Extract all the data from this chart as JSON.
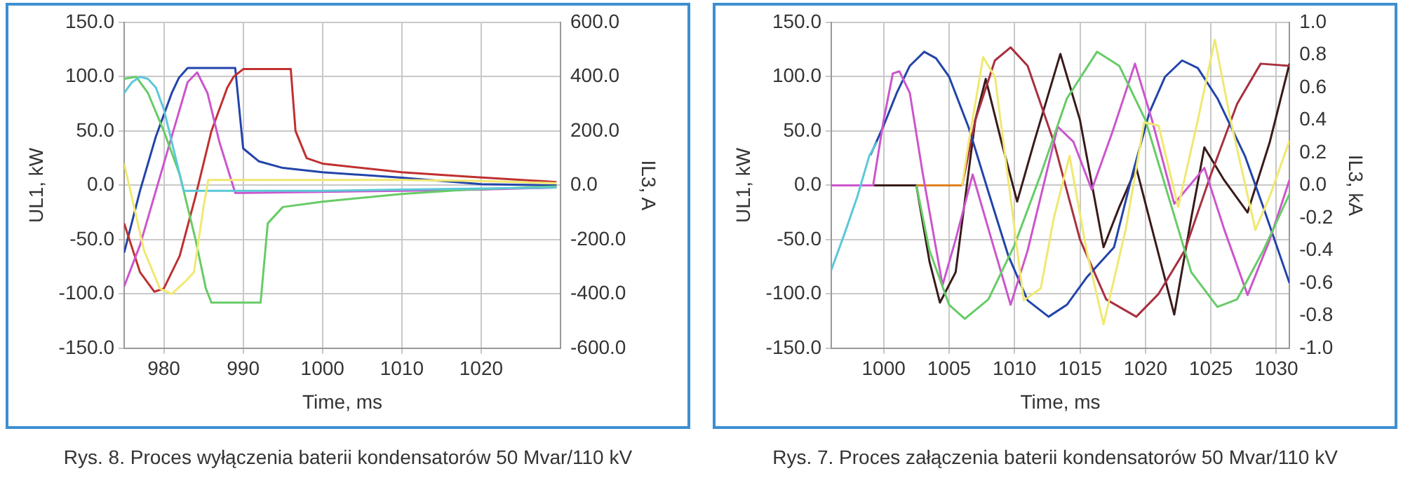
{
  "chart_data": [
    {
      "type": "line",
      "xlabel": "Time, ms",
      "ylabel": "UL1, kW",
      "y2label": "IL3, A",
      "annotations": [
        "Rys. 8. Proces wyłączenia baterii kondensatorów 50 Mvar/110 kV"
      ],
      "grid": true,
      "legend": false,
      "marker": "none",
      "xlim": [
        975,
        1030
      ],
      "xticks": [
        980,
        990,
        1000,
        1010,
        1020
      ],
      "ylim": [
        -150,
        150
      ],
      "yticks": [
        {
          "value": -150,
          "label": "-150.0"
        },
        {
          "value": -100,
          "label": "-100.0"
        },
        {
          "value": -50,
          "label": "-50.0"
        },
        {
          "value": 0,
          "label": "0.0"
        },
        {
          "value": 50,
          "label": "50.0"
        },
        {
          "value": 100,
          "label": "100.0"
        },
        {
          "value": 150,
          "label": "150.0"
        }
      ],
      "y2lim": [
        -600,
        600
      ],
      "y2ticks": [
        {
          "value": -600,
          "label": "-600.0"
        },
        {
          "value": -400,
          "label": "-400.0"
        },
        {
          "value": -200,
          "label": "-200.0"
        },
        {
          "value": 0,
          "label": "0.0"
        },
        {
          "value": 200,
          "label": "200.0"
        },
        {
          "value": 400,
          "label": "400.0"
        },
        {
          "value": 600,
          "label": "600.0"
        }
      ],
      "series": [
        {
          "color": "#f0e870",
          "x": [
            975,
            977.5,
            979.5,
            981,
            982.8,
            983.8,
            985,
            985.6,
            990,
            1000,
            1010,
            1020,
            1029.5
          ],
          "values": [
            20,
            -60,
            -95,
            -100,
            -88,
            -80,
            -20,
            5,
            5,
            5,
            5,
            4,
            2
          ]
        },
        {
          "color": "#5cc8d8",
          "x": [
            975,
            976,
            977,
            978,
            979,
            980,
            981,
            982,
            982.5,
            990,
            1000,
            1010,
            1020,
            1029.5
          ],
          "values": [
            85,
            95,
            100,
            98,
            90,
            70,
            40,
            10,
            -5,
            -5,
            -5,
            -4,
            -3,
            -2
          ]
        },
        {
          "color": "#66cc66",
          "x": [
            975,
            976.5,
            978,
            980,
            982,
            984,
            985.3,
            986,
            992.2,
            993.1,
            995,
            1000,
            1010,
            1018.3,
            1029.5
          ],
          "values": [
            98,
            100,
            85,
            50,
            10,
            -50,
            -95,
            -108,
            -108,
            -35,
            -20,
            -15,
            -8,
            -4,
            -1
          ]
        },
        {
          "color": "#cc55cc",
          "x": [
            975,
            977,
            979,
            981,
            983,
            984.2,
            985.5,
            987,
            989,
            990,
            1000,
            1010,
            1020,
            1029.5
          ],
          "values": [
            -93,
            -55,
            -5,
            45,
            95,
            104,
            85,
            40,
            -7,
            -7,
            -6,
            -5,
            -4,
            -2
          ]
        },
        {
          "color": "#c03030",
          "x": [
            975,
            977,
            978.8,
            980,
            982,
            984,
            986,
            988,
            988.8,
            990,
            996,
            996.6,
            998,
            1000,
            1010,
            1018.3,
            1029.5
          ],
          "values": [
            -35,
            -80,
            -98,
            -95,
            -65,
            -10,
            50,
            90,
            100,
            107,
            107,
            50,
            25,
            20,
            12,
            8,
            3
          ]
        },
        {
          "color": "#2244aa",
          "x": [
            975,
            977,
            979,
            981,
            981.9,
            983,
            989,
            990,
            992,
            995,
            1000,
            1010,
            1020,
            1029.5
          ],
          "values": [
            -62,
            -5,
            45,
            85,
            99,
            108,
            108,
            34,
            22,
            16,
            12,
            7,
            1,
            0
          ]
        }
      ]
    },
    {
      "type": "line",
      "xlabel": "Time, ms",
      "ylabel": "UL1, kW",
      "y2label": "IL3, kA",
      "annotations": [
        "Rys. 7. Proces załączenia baterii kondensatorów 50 Mvar/110 kV"
      ],
      "grid": true,
      "legend": false,
      "marker": "none",
      "xlim": [
        996,
        1031
      ],
      "xticks": [
        1000,
        1005,
        1010,
        1015,
        1020,
        1025,
        1030
      ],
      "ylim": [
        -150,
        150
      ],
      "yticks": [
        {
          "value": -150,
          "label": "-150.0"
        },
        {
          "value": -100,
          "label": "-100.0"
        },
        {
          "value": -50,
          "label": "-50.0"
        },
        {
          "value": 0,
          "label": "0.0"
        },
        {
          "value": 50,
          "label": "50.0"
        },
        {
          "value": 100,
          "label": "100.0"
        },
        {
          "value": 150,
          "label": "150.0"
        }
      ],
      "y2lim": [
        -1,
        1
      ],
      "y2ticks": [
        {
          "value": -1,
          "label": "-1.0"
        },
        {
          "value": -0.8,
          "label": "-0.8"
        },
        {
          "value": -0.6,
          "label": "-0.6"
        },
        {
          "value": -0.4,
          "label": "-0.4"
        },
        {
          "value": -0.2,
          "label": "-0.2"
        },
        {
          "value": 0,
          "label": "0.0"
        },
        {
          "value": 0.2,
          "label": "0.2"
        },
        {
          "value": 0.4,
          "label": "0.4"
        },
        {
          "value": 0.6,
          "label": "0.6"
        },
        {
          "value": 0.8,
          "label": "0.8"
        },
        {
          "value": 1,
          "label": "1.0"
        }
      ],
      "series": [
        {
          "color": "#5cc8d8",
          "x": [
            996,
            997,
            998,
            998.9,
            999.5
          ],
          "values": [
            -78,
            -45,
            -10,
            27,
            40
          ]
        },
        {
          "color": "#f0e870",
          "x": [
            1006,
            1006.5,
            1007.6,
            1008.5,
            1010,
            1010.7,
            1012,
            1013,
            1014.2,
            1015.5,
            1016.8,
            1018.5,
            1019.9,
            1021,
            1022.5,
            1024,
            1025.3,
            1026.5,
            1028.4,
            1029.5,
            1031
          ],
          "values": [
            0,
            40,
            118,
            100,
            -40,
            -106,
            -95,
            -30,
            27,
            -60,
            -128,
            -40,
            58,
            55,
            -20,
            60,
            134,
            60,
            -41,
            -10,
            41
          ]
        },
        {
          "color": "#66cc66",
          "x": [
            1002.5,
            1003.5,
            1005,
            1006.2,
            1008,
            1010,
            1012,
            1014,
            1016.3,
            1018,
            1020,
            1022,
            1023.5,
            1025.5,
            1027,
            1029,
            1031
          ],
          "values": [
            0,
            -60,
            -110,
            -123,
            -105,
            -55,
            10,
            80,
            123,
            110,
            60,
            -20,
            -80,
            -112,
            -105,
            -60,
            -8
          ]
        },
        {
          "color": "#cc55cc",
          "x": [
            996,
            999.2,
            1000,
            1000.7,
            1001.2,
            1002,
            1003,
            1004.5,
            1005.5,
            1006.8,
            1008,
            1009.7,
            1011,
            1013.3,
            1014.5,
            1015.9,
            1017.5,
            1019.2,
            1020.5,
            1022.2,
            1024.5,
            1026,
            1027.8,
            1029.5,
            1031
          ],
          "values": [
            0,
            0,
            60,
            103,
            105,
            85,
            10,
            -92,
            -50,
            10,
            -40,
            -110,
            -60,
            54,
            40,
            -4,
            50,
            112,
            60,
            -17,
            16,
            -40,
            -101,
            -50,
            5
          ]
        },
        {
          "color": "#2244aa",
          "x": [
            999,
            1000,
            1001,
            1002,
            1003.1,
            1004,
            1005,
            1006.5,
            1008,
            1009.5,
            1011,
            1012.6,
            1014,
            1015.5,
            1017.6,
            1019,
            1020.3,
            1021.5,
            1022.8,
            1024,
            1025.5,
            1027.6,
            1029,
            1031
          ],
          "values": [
            28,
            55,
            85,
            110,
            123,
            117,
            100,
            53,
            -6,
            -64,
            -106,
            -121,
            -110,
            -85,
            -57,
            10,
            67,
            100,
            115,
            108,
            80,
            27,
            -20,
            -90
          ]
        },
        {
          "color": "#a83040",
          "x": [
            1006,
            1007,
            1008.5,
            1009.7,
            1011,
            1013,
            1015,
            1017,
            1019.3,
            1021,
            1023,
            1025,
            1027,
            1028.8,
            1031
          ],
          "values": [
            0,
            60,
            115,
            127,
            110,
            40,
            -50,
            -105,
            -121,
            -100,
            -60,
            10,
            75,
            112,
            110
          ]
        },
        {
          "color": "#e08020",
          "x": [
            1002.5,
            1006
          ],
          "values": [
            0,
            0
          ]
        },
        {
          "color": "#3a1a1a",
          "x": [
            996,
            1002.5,
            1003.5,
            1004.3,
            1005.5,
            1007,
            1007.8,
            1009,
            1010.2,
            1011.5,
            1013.5,
            1015,
            1016.8,
            1018,
            1019.3,
            1020.5,
            1022.2,
            1023.5,
            1024.5,
            1026,
            1027.8,
            1029.5,
            1031
          ],
          "values": [
            0,
            0,
            -70,
            -108,
            -80,
            60,
            98,
            40,
            -15,
            40,
            121,
            60,
            -57,
            -20,
            16,
            -40,
            -119,
            -30,
            35,
            5,
            -25,
            40,
            112
          ]
        }
      ]
    }
  ]
}
